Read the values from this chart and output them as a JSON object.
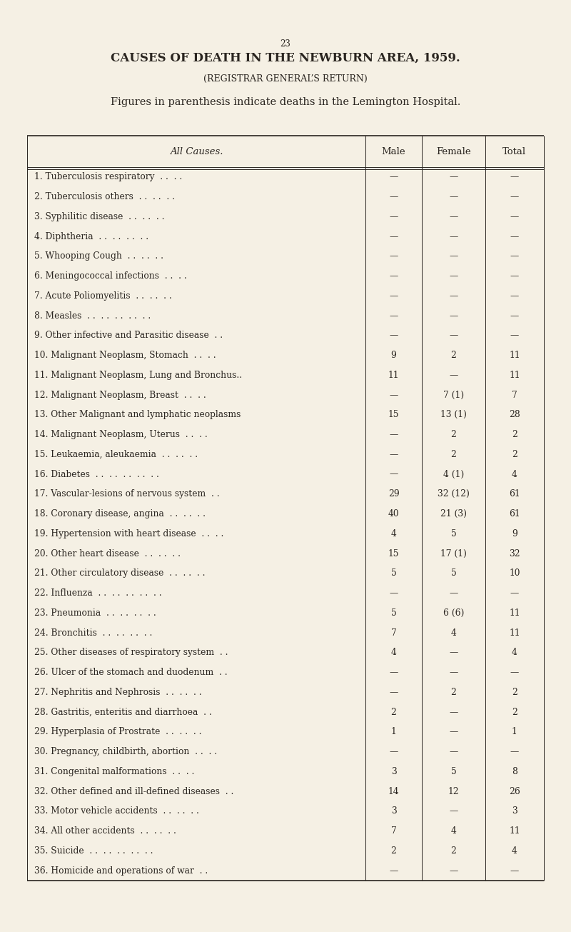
{
  "page_number": "23",
  "title": "CAUSES OF DEATH IN THE NEWBURN AREA, 1959.",
  "subtitle": "(REGISTRAR GENERAL’S RETURN)",
  "note": "Figures in parenthesis indicate deaths in the Lemington Hospital.",
  "col_headers": [
    "All Causes.",
    "Male",
    "Female",
    "Total"
  ],
  "rows": [
    [
      "1. Tuberculosis respiratory  . .  . .",
      "—",
      "—",
      "—"
    ],
    [
      "2. Tuberculosis others  . .  . .  . .",
      "—",
      "—",
      "—"
    ],
    [
      "3. Syphilitic disease  . .  . .  . .",
      "—",
      "—",
      "—"
    ],
    [
      "4. Diphtheria  . .  . .  . .  . .",
      "—",
      "—",
      "—"
    ],
    [
      "5. Whooping Cough  . .  . .  . .",
      "—",
      "—",
      "—"
    ],
    [
      "6. Meningococcal infections  . .  . .",
      "—",
      "—",
      "—"
    ],
    [
      "7. Acute Poliomyelitis  . .  . .  . .",
      "—",
      "—",
      "—"
    ],
    [
      "8. Measles  . .  . .  . .  . .  . .",
      "—",
      "—",
      "—"
    ],
    [
      "9. Other infective and Parasitic disease  . .",
      "—",
      "—",
      "—"
    ],
    [
      "10. Malignant Neoplasm, Stomach  . .  . .",
      "9",
      "2",
      "11"
    ],
    [
      "11. Malignant Neoplasm, Lung and Bronchus..",
      "11",
      "—",
      "11"
    ],
    [
      "12. Malignant Neoplasm, Breast  . .  . .",
      "—",
      "7 (1)",
      "7"
    ],
    [
      "13. Other Malignant and lymphatic neoplasms",
      "15",
      "13 (1)",
      "28"
    ],
    [
      "14. Malignant Neoplasm, Uterus  . .  . .",
      "—",
      "2",
      "2"
    ],
    [
      "15. Leukaemia, aleukaemia  . .  . .  . .",
      "—",
      "2",
      "2"
    ],
    [
      "16. Diabetes  . .  . .  . .  . .  . .",
      "—",
      "4 (1)",
      "4"
    ],
    [
      "17. Vascular-lesions of nervous system  . .",
      "29",
      "32 (12)",
      "61"
    ],
    [
      "18. Coronary disease, angina  . .  . .  . .",
      "40",
      "21 (3)",
      "61"
    ],
    [
      "19. Hypertension with heart disease  . .  . .",
      "4",
      "5",
      "9"
    ],
    [
      "20. Other heart disease  . .  . .  . .",
      "15",
      "17 (1)",
      "32"
    ],
    [
      "21. Other circulatory disease  . .  . .  . .",
      "5",
      "5",
      "10"
    ],
    [
      "22. Influenza  . .  . .  . .  . .  . .",
      "—",
      "—",
      "—"
    ],
    [
      "23. Pneumonia  . .  . .  . .  . .",
      "5",
      "6 (6)",
      "11"
    ],
    [
      "24. Bronchitis  . .  . .  . .  . .",
      "7",
      "4",
      "11"
    ],
    [
      "25. Other diseases of respiratory system  . .",
      "4",
      "—",
      "4"
    ],
    [
      "26. Ulcer of the stomach and duodenum  . .",
      "—",
      "—",
      "—"
    ],
    [
      "27. Nephritis and Nephrosis  . .  . .  . .",
      "—",
      "2",
      "2"
    ],
    [
      "28. Gastritis, enteritis and diarrhoea  . .",
      "2",
      "—",
      "2"
    ],
    [
      "29. Hyperplasia of Prostrate  . .  . .  . .",
      "1",
      "—",
      "1"
    ],
    [
      "30. Pregnancy, childbirth, abortion  . .  . .",
      "—",
      "—",
      "—"
    ],
    [
      "31. Congenital malformations  . .  . .",
      "3",
      "5",
      "8"
    ],
    [
      "32. Other defined and ill-defined diseases  . .",
      "14",
      "12",
      "26"
    ],
    [
      "33. Motor vehicle accidents  . .  . .  . .",
      "3",
      "—",
      "3"
    ],
    [
      "34. All other accidents  . .  . .  . .",
      "7",
      "4",
      "11"
    ],
    [
      "35. Suicide  . .  . .  . .  . .  . .",
      "2",
      "2",
      "4"
    ],
    [
      "36. Homicide and operations of war  . .",
      "—",
      "—",
      "—"
    ]
  ],
  "bg_color": "#f5f0e4",
  "text_color": "#2a2520",
  "border_color": "#2a2520",
  "fig_width": 8.0,
  "fig_height": 13.05,
  "dpi": 100
}
